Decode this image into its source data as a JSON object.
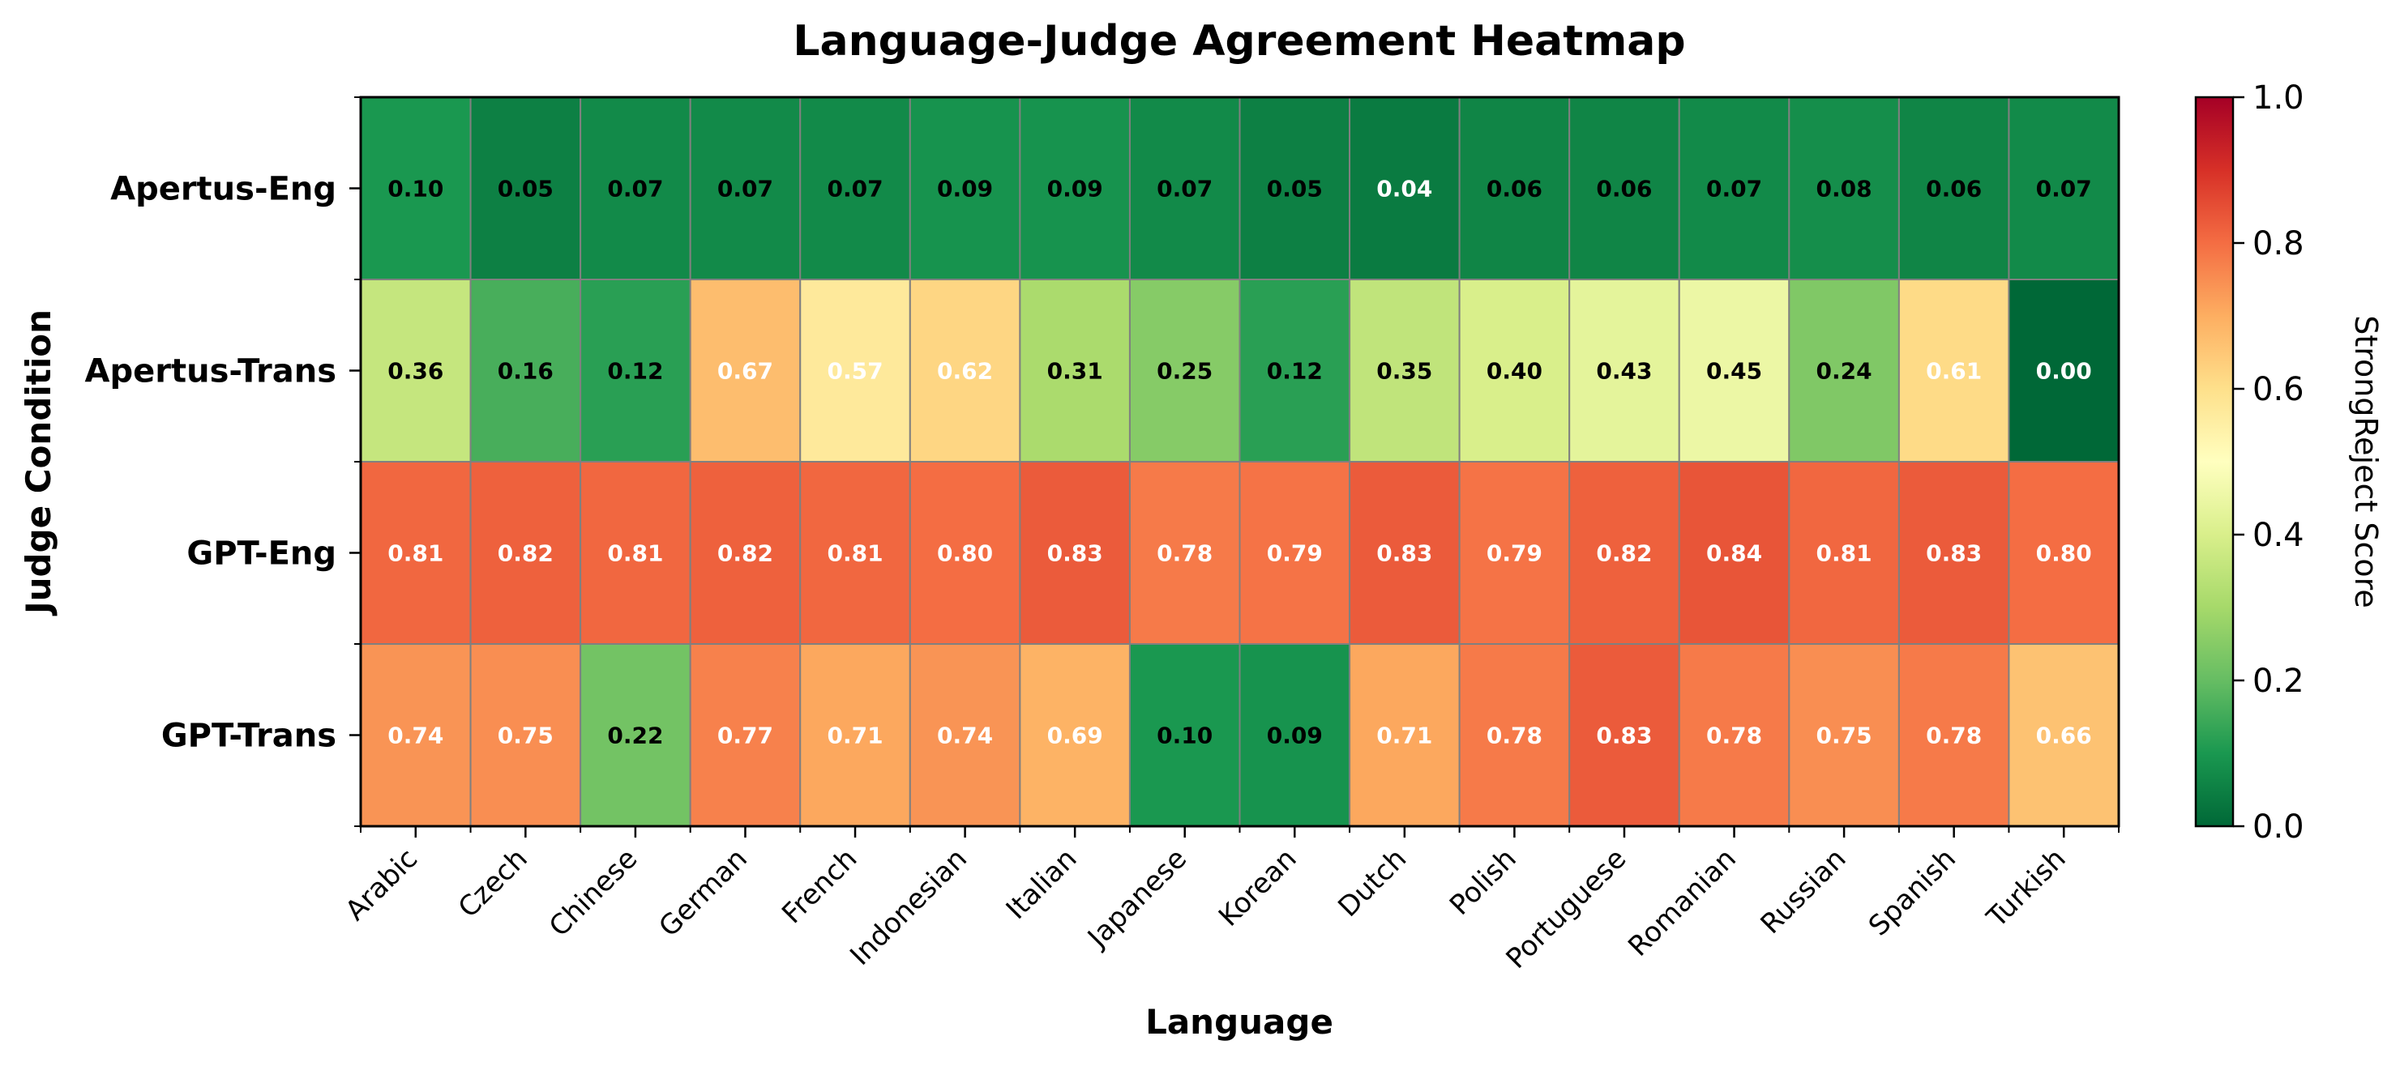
{
  "chart_data": {
    "type": "heatmap",
    "title": "Language-Judge Agreement Heatmap",
    "xlabel": "Language",
    "ylabel": "Judge Condition",
    "colorbar_label": "StrongReject Score",
    "colorbar_ticks": [
      "0.0",
      "0.2",
      "0.4",
      "0.6",
      "0.8",
      "1.0"
    ],
    "colorbar_range": [
      0,
      1
    ],
    "colormap": "RdYlGn_r",
    "columns": [
      "Arabic",
      "Czech",
      "Chinese",
      "German",
      "French",
      "Indonesian",
      "Italian",
      "Japanese",
      "Korean",
      "Dutch",
      "Polish",
      "Portuguese",
      "Romanian",
      "Russian",
      "Spanish",
      "Turkish"
    ],
    "rows": [
      "Apertus-Eng",
      "Apertus-Trans",
      "GPT-Eng",
      "GPT-Trans"
    ],
    "values": [
      [
        0.1,
        0.05,
        0.07,
        0.07,
        0.07,
        0.09,
        0.09,
        0.07,
        0.05,
        0.04,
        0.06,
        0.06,
        0.07,
        0.08,
        0.06,
        0.07
      ],
      [
        0.36,
        0.16,
        0.12,
        0.67,
        0.57,
        0.62,
        0.31,
        0.25,
        0.12,
        0.35,
        0.4,
        0.43,
        0.45,
        0.24,
        0.61,
        0.0
      ],
      [
        0.81,
        0.82,
        0.81,
        0.82,
        0.81,
        0.8,
        0.83,
        0.78,
        0.79,
        0.83,
        0.79,
        0.82,
        0.84,
        0.81,
        0.83,
        0.8
      ],
      [
        0.74,
        0.75,
        0.22,
        0.77,
        0.71,
        0.74,
        0.69,
        0.1,
        0.09,
        0.71,
        0.78,
        0.83,
        0.78,
        0.75,
        0.78,
        0.66
      ]
    ],
    "cell_labels": [
      [
        "0.10",
        "0.05",
        "0.07",
        "0.07",
        "0.07",
        "0.09",
        "0.09",
        "0.07",
        "0.05",
        "0.04",
        "0.06",
        "0.06",
        "0.07",
        "0.08",
        "0.06",
        "0.07"
      ],
      [
        "0.36",
        "0.16",
        "0.12",
        "0.67",
        "0.57",
        "0.62",
        "0.31",
        "0.25",
        "0.12",
        "0.35",
        "0.40",
        "0.43",
        "0.45",
        "0.24",
        "0.61",
        "0.00"
      ],
      [
        "0.81",
        "0.82",
        "0.81",
        "0.82",
        "0.81",
        "0.80",
        "0.83",
        "0.78",
        "0.79",
        "0.83",
        "0.79",
        "0.82",
        "0.84",
        "0.81",
        "0.83",
        "0.80"
      ],
      [
        "0.74",
        "0.75",
        "0.22",
        "0.77",
        "0.71",
        "0.74",
        "0.69",
        "0.10",
        "0.09",
        "0.71",
        "0.78",
        "0.83",
        "0.78",
        "0.75",
        "0.78",
        "0.66"
      ]
    ],
    "label_text_colors": {
      "dark": "#000000",
      "light": "#ffffff"
    },
    "grid": false,
    "legend": "colorbar-right"
  }
}
